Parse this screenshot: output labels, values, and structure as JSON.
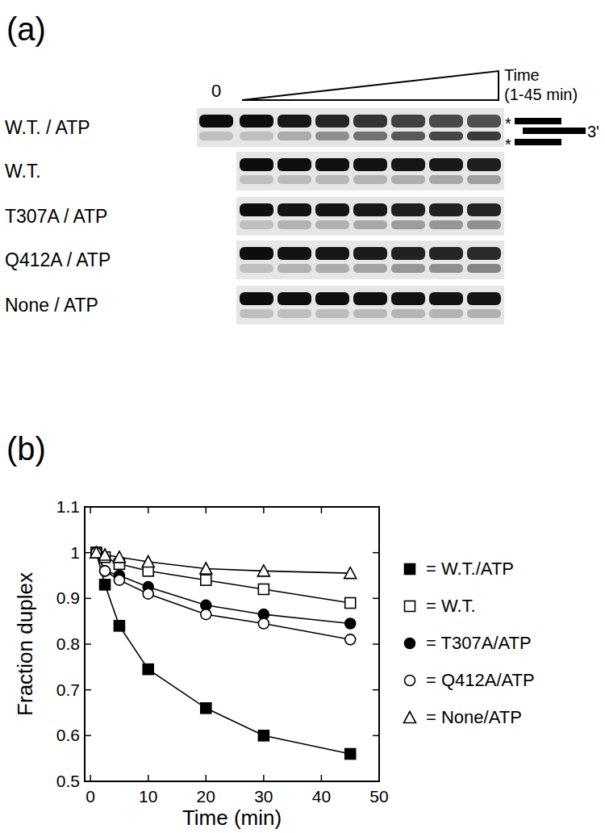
{
  "gel": {
    "panel_label": "(a)",
    "zero_label": "0",
    "time_label": [
      "Time",
      "(1-45 min)"
    ],
    "strand_mark": "*",
    "end_label": "3'",
    "rows": [
      "W.T. / ATP",
      "W.T.",
      "T307A / ATP",
      "Q412A / ATP",
      "None / ATP"
    ]
  },
  "chart_data": {
    "type": "line",
    "panel_label": "(b)",
    "x_label": "Time (min)",
    "y_label": "Fraction duplex",
    "x": [
      1,
      2.5,
      5,
      10,
      20,
      30,
      45
    ],
    "series": [
      {
        "name": "= W.T./ATP",
        "color": "#000000",
        "marker": "filled_square",
        "values": [
          1.0,
          0.93,
          0.84,
          0.745,
          0.66,
          0.6,
          0.56
        ]
      },
      {
        "name": "= W.T.",
        "color": "#000000",
        "marker": "open_square",
        "values": [
          1.0,
          0.99,
          0.975,
          0.96,
          0.94,
          0.92,
          0.89
        ]
      },
      {
        "name": "= T307A/ATP",
        "color": "#000000",
        "marker": "filled_circle",
        "values": [
          1.0,
          0.96,
          0.95,
          0.925,
          0.885,
          0.865,
          0.845
        ]
      },
      {
        "name": "= Q412A/ATP",
        "color": "#000000",
        "marker": "open_circle",
        "values": [
          1.0,
          0.96,
          0.94,
          0.91,
          0.865,
          0.845,
          0.81
        ]
      },
      {
        "name": "= None/ATP",
        "color": "#000000",
        "marker": "open_triangle",
        "values": [
          1.0,
          0.995,
          0.99,
          0.98,
          0.965,
          0.96,
          0.955
        ]
      }
    ],
    "xlim": [
      -1,
      50
    ],
    "xticks": [
      0,
      10,
      20,
      30,
      40,
      50
    ],
    "ylim": [
      0.5,
      1.1
    ],
    "yticks": [
      0.5,
      0.6,
      0.7,
      0.8,
      0.9,
      1,
      1.1
    ],
    "grid": false,
    "legend": "right"
  }
}
